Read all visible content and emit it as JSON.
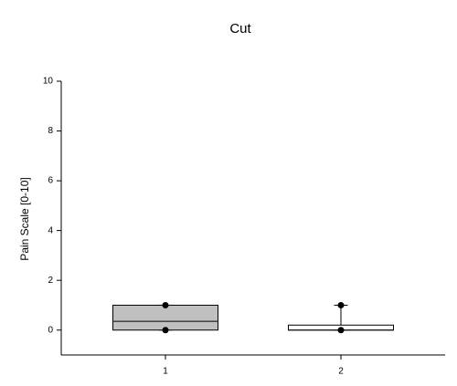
{
  "chart_data": {
    "type": "box",
    "title": "Cut",
    "y_label": "Pain Scale [0-10]",
    "categories": [
      "1",
      "2"
    ],
    "boxes": [
      {
        "min": 0,
        "q1": 0,
        "median": 0.35,
        "q3": 1,
        "max": 1,
        "points": [
          0,
          1
        ],
        "color": "#c0c0c0"
      },
      {
        "min": 0,
        "q1": 0,
        "median": 0,
        "q3": 0.2,
        "max": 1,
        "points": [
          0,
          1
        ],
        "color": "#ffffff"
      }
    ],
    "ylim": [
      -1,
      10
    ],
    "yticks": [
      0,
      2,
      4,
      6,
      8,
      10
    ]
  }
}
